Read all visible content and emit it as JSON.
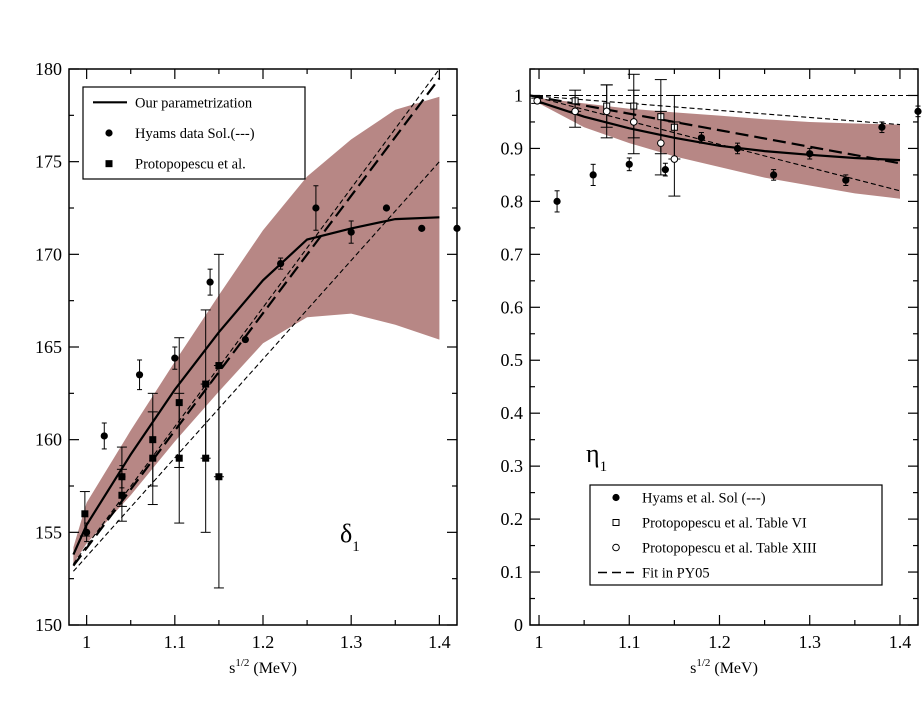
{
  "chart_data": [
    {
      "type": "scatter",
      "panel": "left",
      "title": "",
      "xlabel_base": "s",
      "xlabel_sup": "1/2",
      "xlabel_unit": " (MeV)",
      "ylabel": "",
      "xlim": [
        0.98,
        1.42
      ],
      "ylim": [
        150,
        180
      ],
      "xticks": [
        1,
        1.1,
        1.2,
        1.3,
        1.4
      ],
      "xtick_labels": [
        "1",
        "1.1",
        "1.2",
        "1.3",
        "1.4"
      ],
      "yticks": [
        150,
        155,
        160,
        165,
        170,
        175,
        180
      ],
      "ytick_labels": [
        "150",
        "155",
        "160",
        "165",
        "170",
        "175",
        "180"
      ],
      "panel_label": "δ",
      "panel_label_sub": "1",
      "legend_position": "top-left",
      "legend": [
        {
          "label": "Our parametrization",
          "marker": "line"
        },
        {
          "label": "Hyams data Sol.(---)",
          "marker": "circle"
        },
        {
          "label": "Protopopescu et al.",
          "marker": "square"
        }
      ],
      "band": {
        "name": "uncertainty band",
        "color": "#b78785",
        "x": [
          0.985,
          1.0,
          1.05,
          1.1,
          1.15,
          1.2,
          1.25,
          1.3,
          1.35,
          1.4
        ],
        "upper": [
          154.2,
          156.6,
          160.5,
          164.2,
          167.8,
          171.3,
          174.2,
          176.2,
          177.8,
          178.5
        ],
        "lower": [
          153.3,
          154.4,
          157.0,
          159.9,
          162.6,
          165.2,
          166.6,
          166.8,
          166.2,
          165.4
        ]
      },
      "series": [
        {
          "name": "Our parametrization",
          "style": "solid",
          "x": [
            0.985,
            1.0,
            1.05,
            1.1,
            1.15,
            1.2,
            1.25,
            1.3,
            1.35,
            1.4
          ],
          "y": [
            153.8,
            155.4,
            159.2,
            162.7,
            165.8,
            168.6,
            170.8,
            171.4,
            171.9,
            172.0
          ]
        },
        {
          "name": "Hyams data Sol.(---) central",
          "style": "long-dash",
          "x": [
            0.985,
            1.4
          ],
          "y": [
            153.2,
            179.5
          ]
        },
        {
          "name": "Hyams data Sol.(---) upper",
          "style": "short-dash",
          "x": [
            0.985,
            1.4
          ],
          "y": [
            153.3,
            180.0
          ]
        },
        {
          "name": "Hyams data Sol.(---) lower",
          "style": "short-dash",
          "x": [
            0.985,
            1.4
          ],
          "y": [
            152.9,
            175.0
          ]
        }
      ],
      "hyams_points": {
        "x": [
          1.0,
          1.02,
          1.04,
          1.06,
          1.1,
          1.14,
          1.18,
          1.22,
          1.26,
          1.3,
          1.34,
          1.38,
          1.42
        ],
        "y": [
          155.0,
          160.2,
          158.0,
          163.5,
          164.4,
          168.5,
          165.4,
          169.5,
          172.5,
          171.2,
          172.5,
          171.4,
          171.4
        ],
        "err": [
          0.5,
          0.7,
          0.6,
          0.8,
          0.6,
          0.7,
          0.0,
          0.3,
          1.2,
          0.6,
          0.0,
          0.0,
          0.0
        ]
      },
      "proto_points": {
        "x": [
          0.998,
          1.04,
          1.04,
          1.075,
          1.075,
          1.105,
          1.105,
          1.135,
          1.135,
          1.15,
          1.15
        ],
        "y": [
          156.0,
          158.0,
          157.0,
          160.0,
          159.0,
          162.0,
          159.0,
          163.0,
          159.0,
          164.0,
          158.0
        ],
        "err": [
          1.2,
          1.6,
          1.4,
          2.5,
          2.5,
          3.5,
          3.5,
          4.0,
          4.0,
          6.0,
          6.0
        ]
      }
    },
    {
      "type": "scatter",
      "panel": "right",
      "title": "",
      "xlabel_base": "s",
      "xlabel_sup": "1/2",
      "xlabel_unit": " (MeV)",
      "ylabel": "",
      "xlim": [
        0.99,
        1.42
      ],
      "ylim": [
        0,
        1.05
      ],
      "xticks": [
        1,
        1.1,
        1.2,
        1.3,
        1.4
      ],
      "xtick_labels": [
        "1",
        "1.1",
        "1.2",
        "1.3",
        "1.4"
      ],
      "yticks": [
        0,
        0.1,
        0.2,
        0.3,
        0.4,
        0.5,
        0.6,
        0.7,
        0.8,
        0.9,
        1
      ],
      "ytick_labels": [
        "0",
        "0.1",
        "0.2",
        "0.3",
        "0.4",
        "0.5",
        "0.6",
        "0.7",
        "0.8",
        "0.9",
        "1"
      ],
      "panel_label": "η",
      "panel_label_sub": "1",
      "legend_position": "bottom-right",
      "legend": [
        {
          "label": "Hyams et al. Sol (---)",
          "marker": "circle"
        },
        {
          "label": "Protopopescu et al. Table VI",
          "marker": "open-square"
        },
        {
          "label": "Protopopescu et al. Table XIII",
          "marker": "open-circle"
        },
        {
          "label": "Fit in PY05",
          "marker": "long-dash"
        }
      ],
      "band": {
        "name": "uncertainty band",
        "color": "#b78785",
        "x": [
          1.0,
          1.05,
          1.1,
          1.15,
          1.2,
          1.25,
          1.3,
          1.35,
          1.4
        ],
        "upper": [
          0.995,
          0.985,
          0.975,
          0.968,
          0.962,
          0.955,
          0.95,
          0.947,
          0.945
        ],
        "lower": [
          0.985,
          0.94,
          0.91,
          0.885,
          0.865,
          0.845,
          0.83,
          0.815,
          0.805
        ]
      },
      "series": [
        {
          "name": "Our parametrization",
          "style": "solid",
          "x": [
            1.0,
            1.05,
            1.1,
            1.15,
            1.2,
            1.25,
            1.3,
            1.35,
            1.4
          ],
          "y": [
            0.988,
            0.96,
            0.938,
            0.92,
            0.905,
            0.895,
            0.888,
            0.882,
            0.878
          ]
        },
        {
          "name": "Fit in PY05",
          "style": "long-dash",
          "x": [
            0.99,
            1.4
          ],
          "y": [
            1.0,
            0.872
          ]
        },
        {
          "name": "upper thin dash",
          "style": "short-dash",
          "x": [
            0.99,
            1.42
          ],
          "y": [
            1.0,
            1.0
          ]
        },
        {
          "name": "middle thin dash",
          "style": "short-dash",
          "x": [
            0.99,
            1.4
          ],
          "y": [
            1.0,
            0.945
          ]
        },
        {
          "name": "lower thin dash",
          "style": "short-dash",
          "x": [
            0.99,
            1.4
          ],
          "y": [
            1.0,
            0.82
          ]
        }
      ],
      "hyams_points": {
        "x": [
          1.02,
          1.06,
          1.1,
          1.14,
          1.18,
          1.22,
          1.26,
          1.3,
          1.34,
          1.38,
          1.42
        ],
        "y": [
          0.8,
          0.85,
          0.87,
          0.86,
          0.92,
          0.9,
          0.85,
          0.89,
          0.84,
          0.94,
          0.97
        ],
        "err": [
          0.02,
          0.02,
          0.012,
          0.012,
          0.01,
          0.01,
          0.01,
          0.01,
          0.01,
          0.01,
          0.01
        ]
      },
      "proto_vi_points": {
        "x": [
          1.04,
          1.075,
          1.105,
          1.135,
          1.15
        ],
        "y": [
          0.99,
          0.98,
          0.98,
          0.96,
          0.94
        ],
        "err": [
          0.02,
          0.04,
          0.06,
          0.07,
          0.06
        ]
      },
      "proto_xiii_points": {
        "x": [
          0.998,
          1.04,
          1.075,
          1.105,
          1.135,
          1.15
        ],
        "y": [
          0.99,
          0.97,
          0.97,
          0.95,
          0.91,
          0.88
        ],
        "err": [
          0.005,
          0.03,
          0.05,
          0.06,
          0.06,
          0.07
        ]
      }
    }
  ]
}
